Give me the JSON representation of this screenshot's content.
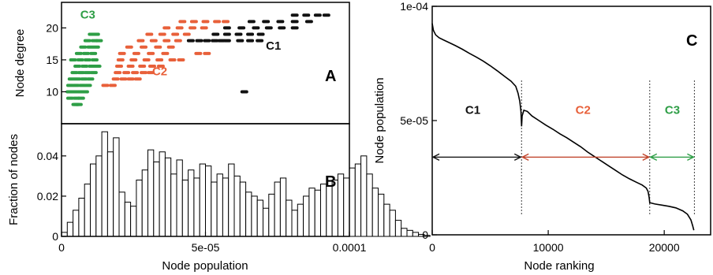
{
  "chart_data": [
    {
      "id": "A",
      "type": "scatter",
      "panel_label": "A",
      "ylabel": "Node degree",
      "xlim": [
        0,
        0.0001
      ],
      "ylim": [
        5,
        24
      ],
      "yticks": [
        "10",
        "15",
        "20"
      ],
      "ytick_values": [
        10,
        15,
        20
      ],
      "grid": false,
      "colors": {
        "C1": "#111111",
        "C2": "#e8603a",
        "C3": "#2e9e46"
      },
      "series": [
        {
          "name": "C1",
          "label_x": 7.1e-05,
          "label_y": 16.6,
          "points": [
            [
              4.49e-05,
              18.0
            ],
            [
              4.78e-05,
              18.0
            ],
            [
              5.05e-05,
              18.0
            ],
            [
              5.32e-05,
              18.0
            ],
            [
              5.55e-05,
              18.0
            ],
            [
              5.75e-05,
              18.0
            ],
            [
              5.35e-05,
              19.0
            ],
            [
              5.75e-05,
              19.0
            ],
            [
              6.15e-05,
              19.0
            ],
            [
              6.55e-05,
              19.0
            ],
            [
              6.92e-05,
              19.0
            ],
            [
              5.75e-05,
              20.0
            ],
            [
              6.25e-05,
              20.0
            ],
            [
              6.75e-05,
              20.0
            ],
            [
              7.2e-05,
              20.0
            ],
            [
              7.65e-05,
              20.0
            ],
            [
              8.1e-05,
              20.0
            ],
            [
              6.6e-05,
              21.0
            ],
            [
              7.1e-05,
              21.0
            ],
            [
              7.6e-05,
              21.0
            ],
            [
              8.1e-05,
              21.0
            ],
            [
              8.6e-05,
              21.0
            ],
            [
              8.1e-05,
              22.0
            ],
            [
              8.5e-05,
              22.0
            ],
            [
              8.9e-05,
              22.0
            ],
            [
              9.2e-05,
              22.0
            ],
            [
              6.2e-05,
              18.0
            ],
            [
              6.55e-05,
              18.0
            ],
            [
              6.88e-05,
              18.0
            ],
            [
              6.35e-05,
              10.0
            ]
          ]
        },
        {
          "name": "C2",
          "label_x": 3.15e-05,
          "label_y": 12.6,
          "points": [
            [
              1.52e-05,
              11.0
            ],
            [
              1.78e-05,
              11.0
            ],
            [
              1.88e-05,
              12.0
            ],
            [
              2.15e-05,
              12.0
            ],
            [
              2.4e-05,
              12.0
            ],
            [
              2.65e-05,
              12.0
            ],
            [
              1.95e-05,
              13.0
            ],
            [
              2.25e-05,
              13.0
            ],
            [
              2.55e-05,
              13.0
            ],
            [
              2.85e-05,
              13.0
            ],
            [
              3.1e-05,
              13.0
            ],
            [
              2e-05,
              14.0
            ],
            [
              2.4e-05,
              14.0
            ],
            [
              2.8e-05,
              14.0
            ],
            [
              3.15e-05,
              14.0
            ],
            [
              3.45e-05,
              14.0
            ],
            [
              2.05e-05,
              15.0
            ],
            [
              2.5e-05,
              15.0
            ],
            [
              2.95e-05,
              15.0
            ],
            [
              3.4e-05,
              15.0
            ],
            [
              3.85e-05,
              15.0
            ],
            [
              4.15e-05,
              15.0
            ],
            [
              2.1e-05,
              16.0
            ],
            [
              2.6e-05,
              16.0
            ],
            [
              3.1e-05,
              16.0
            ],
            [
              3.6e-05,
              16.0
            ],
            [
              2.35e-05,
              17.0
            ],
            [
              2.85e-05,
              17.0
            ],
            [
              3.35e-05,
              17.0
            ],
            [
              3.8e-05,
              17.0
            ],
            [
              2.75e-05,
              18.0
            ],
            [
              3.2e-05,
              18.0
            ],
            [
              3.65e-05,
              18.0
            ],
            [
              4.05e-05,
              18.0
            ],
            [
              3.05e-05,
              19.0
            ],
            [
              3.5e-05,
              19.0
            ],
            [
              3.95e-05,
              19.0
            ],
            [
              4.35e-05,
              19.0
            ],
            [
              3.65e-05,
              20.0
            ],
            [
              4.1e-05,
              20.0
            ],
            [
              4.55e-05,
              20.0
            ],
            [
              4.95e-05,
              20.0
            ],
            [
              4.2e-05,
              21.0
            ],
            [
              4.6e-05,
              21.0
            ],
            [
              5e-05,
              21.0
            ],
            [
              5.4e-05,
              21.0
            ],
            [
              5.7e-05,
              21.0
            ],
            [
              4.75e-05,
              16.0
            ],
            [
              5.05e-05,
              16.0
            ]
          ]
        },
        {
          "name": "C3",
          "label_x": 6.5e-06,
          "label_y": 21.5,
          "points": [
            [
              4.8e-06,
              8.0
            ],
            [
              6e-06,
              8.0
            ],
            [
              5.2e-06,
              9.0
            ],
            [
              6.8e-06,
              9.0
            ],
            [
              4.5e-06,
              10.0
            ],
            [
              6.5e-06,
              10.0
            ],
            [
              8.2e-06,
              10.0
            ],
            [
              3e-06,
              11.0
            ],
            [
              5e-06,
              11.0
            ],
            [
              7.2e-06,
              11.0
            ],
            [
              9.2e-06,
              11.0
            ],
            [
              3.5e-06,
              12.0
            ],
            [
              5.5e-06,
              12.0
            ],
            [
              7.8e-06,
              12.0
            ],
            [
              1e-05,
              12.0
            ],
            [
              4.5e-06,
              13.0
            ],
            [
              6.8e-06,
              13.0
            ],
            [
              9e-06,
              13.0
            ],
            [
              1.12e-05,
              13.0
            ],
            [
              5.5e-06,
              14.0
            ],
            [
              8e-06,
              14.0
            ],
            [
              1.05e-05,
              14.0
            ],
            [
              1.25e-05,
              14.0
            ],
            [
              4e-06,
              15.0
            ],
            [
              6.5e-06,
              15.0
            ],
            [
              9e-06,
              15.0
            ],
            [
              1.15e-05,
              15.0
            ],
            [
              6e-06,
              16.0
            ],
            [
              8.5e-06,
              16.0
            ],
            [
              1.1e-05,
              16.0
            ],
            [
              7.5e-06,
              17.0
            ],
            [
              1e-05,
              17.0
            ],
            [
              1.2e-05,
              17.0
            ],
            [
              9e-06,
              18.0
            ],
            [
              1.15e-05,
              18.0
            ],
            [
              1.3e-05,
              18.0
            ],
            [
              1.05e-05,
              19.0
            ],
            [
              1.2e-05,
              19.0
            ],
            [
              2.8e-06,
              10.0
            ],
            [
              3e-06,
              9.0
            ],
            [
              5.2e-06,
              8.0
            ]
          ]
        }
      ]
    },
    {
      "id": "B",
      "type": "bar",
      "panel_label": "B",
      "xlabel": "Node population",
      "ylabel": "Fraction of nodes",
      "xlim": [
        0,
        0.0001
      ],
      "ylim": [
        0,
        0.056
      ],
      "xticks": [
        "0",
        "5e-05",
        "0.0001"
      ],
      "xtick_values": [
        0,
        5e-05,
        0.0001
      ],
      "yticks": [
        "0",
        "0.02",
        "0.04"
      ],
      "ytick_values": [
        0,
        0.02,
        0.04
      ],
      "grid": false,
      "bin_width": 2e-06,
      "bin_start": 0.0,
      "values": [
        0.002,
        0.007,
        0.013,
        0.019,
        0.026,
        0.036,
        0.04,
        0.052,
        0.042,
        0.049,
        0.022,
        0.017,
        0.015,
        0.028,
        0.033,
        0.043,
        0.037,
        0.042,
        0.039,
        0.031,
        0.038,
        0.028,
        0.033,
        0.029,
        0.036,
        0.035,
        0.027,
        0.031,
        0.029,
        0.036,
        0.03,
        0.027,
        0.022,
        0.02,
        0.018,
        0.014,
        0.021,
        0.027,
        0.029,
        0.018,
        0.013,
        0.016,
        0.02,
        0.024,
        0.023,
        0.026,
        0.025,
        0.028,
        0.031,
        0.029,
        0.034,
        0.036,
        0.04,
        0.031,
        0.024,
        0.021,
        0.016,
        0.013,
        0.008,
        0.004,
        0.003,
        0.002,
        0.001,
        0.0005,
        0.0,
        0.0,
        0.0,
        0.0,
        0.0,
        0.0,
        0.0,
        0.0,
        0.0,
        0.0,
        0.0,
        0.0,
        0.0,
        0.0,
        0.0,
        0.0
      ]
    },
    {
      "id": "C",
      "type": "line",
      "panel_label": "C",
      "xlabel": "Node ranking",
      "ylabel": "Node population",
      "xlim": [
        0,
        24000
      ],
      "ylim": [
        0,
        0.0001
      ],
      "xticks": [
        "0",
        "10000",
        "20000"
      ],
      "xtick_values": [
        0,
        10000,
        20000
      ],
      "yticks": [
        "0",
        "5e-05",
        "1e-04"
      ],
      "ytick_values": [
        0,
        5e-05,
        0.0001
      ],
      "grid": false,
      "line": [
        [
          0,
          9.25e-05
        ],
        [
          100,
          8.95e-05
        ],
        [
          300,
          8.75e-05
        ],
        [
          600,
          8.62e-05
        ],
        [
          1000,
          8.52e-05
        ],
        [
          1500,
          8.4e-05
        ],
        [
          2000,
          8.28e-05
        ],
        [
          2600,
          8.12e-05
        ],
        [
          3200,
          7.94e-05
        ],
        [
          3800,
          7.78e-05
        ],
        [
          4400,
          7.6e-05
        ],
        [
          5000,
          7.4e-05
        ],
        [
          5600,
          7.18e-05
        ],
        [
          6200,
          6.95e-05
        ],
        [
          6800,
          6.72e-05
        ],
        [
          7200,
          6.5e-05
        ],
        [
          7400,
          6.2e-05
        ],
        [
          7550,
          5.85e-05
        ],
        [
          7650,
          5.4e-05
        ],
        [
          7700,
          4.75e-05
        ],
        [
          7750,
          5.2e-05
        ],
        [
          7900,
          5.45e-05
        ],
        [
          8200,
          5.4e-05
        ],
        [
          8600,
          5.2e-05
        ],
        [
          9200,
          5e-05
        ],
        [
          9800,
          4.8e-05
        ],
        [
          10400,
          4.62e-05
        ],
        [
          11000,
          4.42e-05
        ],
        [
          11600,
          4.25e-05
        ],
        [
          12200,
          4.05e-05
        ],
        [
          12800,
          3.85e-05
        ],
        [
          13400,
          3.62e-05
        ],
        [
          14000,
          3.42e-05
        ],
        [
          14600,
          3.22e-05
        ],
        [
          15200,
          3.02e-05
        ],
        [
          15800,
          2.82e-05
        ],
        [
          16400,
          2.62e-05
        ],
        [
          17000,
          2.45e-05
        ],
        [
          17600,
          2.3e-05
        ],
        [
          18100,
          2.18e-05
        ],
        [
          18450,
          2.05e-05
        ],
        [
          18600,
          1.9e-05
        ],
        [
          18700,
          1.65e-05
        ],
        [
          18750,
          1.4e-05
        ],
        [
          18800,
          1.4e-05
        ],
        [
          19200,
          1.35e-05
        ],
        [
          19800,
          1.3e-05
        ],
        [
          20400,
          1.25e-05
        ],
        [
          21000,
          1.18e-05
        ],
        [
          21600,
          1.05e-05
        ],
        [
          22000,
          9e-06
        ],
        [
          22300,
          6.5e-06
        ],
        [
          22450,
          4e-06
        ],
        [
          22550,
          2e-06
        ]
      ],
      "dividers": [
        7700,
        18750,
        22600
      ],
      "arrow_y": 3.4e-05,
      "regions": [
        {
          "name": "C1",
          "from": 0,
          "to": 7700,
          "label_x": 3500,
          "label_y": 5.3e-05
        },
        {
          "name": "C2",
          "from": 7700,
          "to": 18750,
          "label_x": 13000,
          "label_y": 5.3e-05
        },
        {
          "name": "C3",
          "from": 18750,
          "to": 22600,
          "label_x": 20700,
          "label_y": 5.3e-05
        }
      ]
    }
  ]
}
